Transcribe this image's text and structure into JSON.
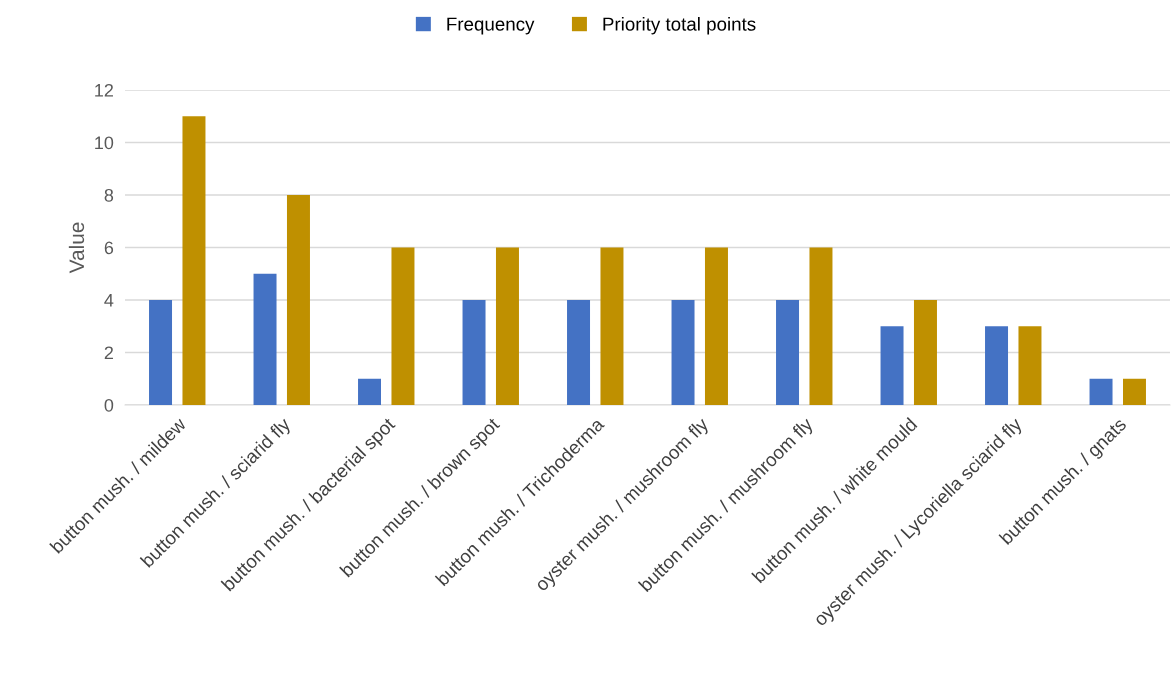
{
  "chart_data": {
    "type": "bar",
    "ylabel": "Value",
    "categories": [
      "button mush. / mildew",
      "button mush. / sciarid fly",
      "button mush. / bacterial spot",
      "button mush. / brown spot",
      "button mush. / Trichoderma",
      "oyster mush. / mushroom fly",
      "button mush. / mushroom fly",
      "button mush. / white mould",
      "oyster mush. / Lycoriella sciarid fly",
      "button mush. / gnats"
    ],
    "series": [
      {
        "name": "Frequency",
        "color": "#4472c4",
        "values": [
          4,
          5,
          1,
          4,
          4,
          4,
          4,
          3,
          3,
          1
        ]
      },
      {
        "name": "Priority total points",
        "color": "#bf9000",
        "values": [
          11,
          8,
          6,
          6,
          6,
          6,
          6,
          4,
          3,
          1
        ]
      }
    ],
    "ylim": [
      0,
      12
    ],
    "yticks": [
      0,
      2,
      4,
      6,
      8,
      10,
      12
    ],
    "grid": "y",
    "legend": "top"
  }
}
